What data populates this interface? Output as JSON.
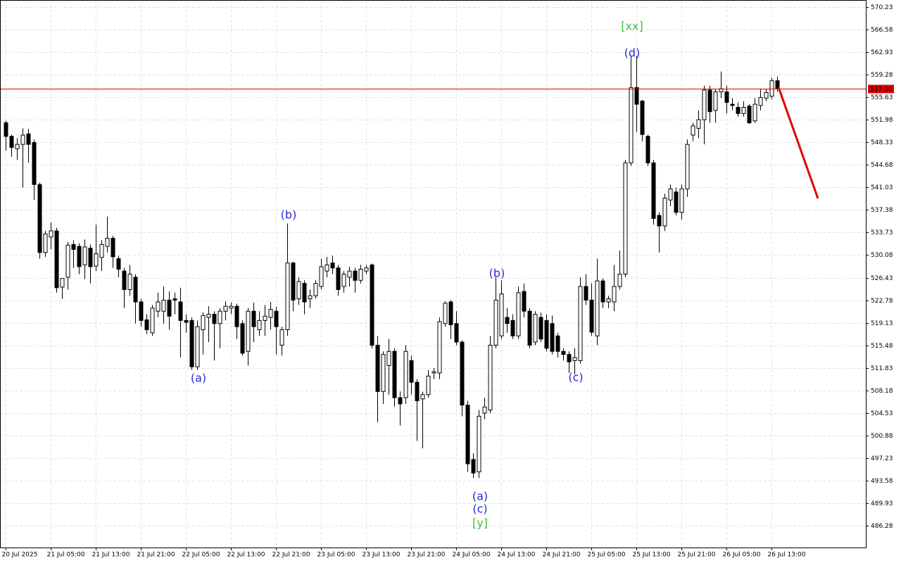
{
  "chart_data": {
    "type": "candlestick",
    "up_color": "#ffffff",
    "down_color": "#000000",
    "wick_color": "#000000",
    "grid": true,
    "ylim": [
      482.75,
      571.37
    ],
    "yticks": [
      570.23,
      566.58,
      562.93,
      559.28,
      555.63,
      551.98,
      548.33,
      544.68,
      541.03,
      537.38,
      533.73,
      530.08,
      526.43,
      522.78,
      519.13,
      515.48,
      511.83,
      508.18,
      504.53,
      500.88,
      497.23,
      493.58,
      489.93,
      486.28
    ],
    "xticks": [
      {
        "value": 0,
        "label": "20 Jul 2025"
      },
      {
        "value": 8,
        "label": "21 Jul 05:00"
      },
      {
        "value": 16,
        "label": "21 Jul 13:00"
      },
      {
        "value": 24,
        "label": "21 Jul 21:00"
      },
      {
        "value": 32,
        "label": "22 Jul 05:00"
      },
      {
        "value": 40,
        "label": "22 Jul 13:00"
      },
      {
        "value": 48,
        "label": "22 Jul 21:00"
      },
      {
        "value": 56,
        "label": "23 Jul 05:00"
      },
      {
        "value": 64,
        "label": "23 Jul 13:00"
      },
      {
        "value": 72,
        "label": "23 Jul 21:00"
      },
      {
        "value": 80,
        "label": "24 Jul 05:00"
      },
      {
        "value": 88,
        "label": "24 Jul 13:00"
      },
      {
        "value": 96,
        "label": "24 Jul 21:00"
      },
      {
        "value": 104,
        "label": "25 Jul 05:00"
      },
      {
        "value": 112,
        "label": "25 Jul 13:00"
      },
      {
        "value": 120,
        "label": "25 Jul 21:00"
      },
      {
        "value": 128,
        "label": "26 Jul 05:00"
      },
      {
        "value": 136,
        "label": "26 Jul 13:00"
      }
    ],
    "price_line": {
      "value": 557,
      "label": "557.00",
      "color": "#e00000"
    },
    "forecast_color": "#e00000",
    "annotations": [
      {
        "text": "(a)",
        "color": "#2a2ad8"
      },
      {
        "text": "(b)",
        "color": "#2a2ad8"
      },
      {
        "text": "(a)",
        "color": "#2a2ad8"
      },
      {
        "text": "(c)",
        "color": "#2a2ad8"
      },
      {
        "text": "[y]",
        "color": "#3cc43c"
      },
      {
        "text": "(b)",
        "color": "#2a2ad8"
      },
      {
        "text": "(c)",
        "color": "#2a2ad8"
      },
      {
        "text": "(d)",
        "color": "#2a2ad8"
      },
      {
        "text": "[xx]",
        "color": "#3cc43c"
      }
    ],
    "candles": [
      {
        "open": 551.5,
        "high": 551.8,
        "low": 547,
        "close": 549.3
      },
      {
        "open": 549.3,
        "high": 549.6,
        "low": 546,
        "close": 547.5
      },
      {
        "open": 547.3,
        "high": 549,
        "low": 545.5,
        "close": 548
      },
      {
        "open": 548,
        "high": 550.6,
        "low": 541,
        "close": 549.5
      },
      {
        "open": 549.7,
        "high": 550.5,
        "low": 545,
        "close": 548
      },
      {
        "open": 548.3,
        "high": 548.8,
        "low": 539,
        "close": 541.5
      },
      {
        "open": 541.5,
        "high": 541.8,
        "low": 529.5,
        "close": 530.5
      },
      {
        "open": 530.5,
        "high": 534,
        "low": 529.8,
        "close": 533.5
      },
      {
        "open": 533,
        "high": 535.4,
        "low": 531,
        "close": 534
      },
      {
        "open": 534,
        "high": 534.5,
        "low": 524,
        "close": 524.8
      },
      {
        "open": 524.9,
        "high": 526.3,
        "low": 523,
        "close": 526.3
      },
      {
        "open": 526.5,
        "high": 532.2,
        "low": 524.5,
        "close": 531.7
      },
      {
        "open": 531.8,
        "high": 532.5,
        "low": 528,
        "close": 531
      },
      {
        "open": 531.5,
        "high": 532,
        "low": 527,
        "close": 528.2
      },
      {
        "open": 528.5,
        "high": 532.6,
        "low": 526.2,
        "close": 531.4
      },
      {
        "open": 531.2,
        "high": 531.8,
        "low": 525.5,
        "close": 528.2
      },
      {
        "open": 528.3,
        "high": 535,
        "low": 527.5,
        "close": 530.3
      },
      {
        "open": 529.7,
        "high": 532.5,
        "low": 527.5,
        "close": 531.8
      },
      {
        "open": 531.5,
        "high": 536.3,
        "low": 530.5,
        "close": 532.8
      },
      {
        "open": 532.8,
        "high": 533.2,
        "low": 528,
        "close": 529.8
      },
      {
        "open": 529.5,
        "high": 530,
        "low": 526.5,
        "close": 527.8
      },
      {
        "open": 527.5,
        "high": 528,
        "low": 521.5,
        "close": 524.5
      },
      {
        "open": 524.5,
        "high": 528.5,
        "low": 523.5,
        "close": 527
      },
      {
        "open": 526.5,
        "high": 527,
        "low": 519,
        "close": 522.5
      },
      {
        "open": 522.5,
        "high": 523,
        "low": 518.5,
        "close": 519.5
      },
      {
        "open": 519.6,
        "high": 520.5,
        "low": 517.3,
        "close": 518
      },
      {
        "open": 517.5,
        "high": 522,
        "low": 517,
        "close": 521.5
      },
      {
        "open": 521,
        "high": 524,
        "low": 520,
        "close": 522.5
      },
      {
        "open": 521,
        "high": 525,
        "low": 519,
        "close": 522.8
      },
      {
        "open": 522.8,
        "high": 524.2,
        "low": 518,
        "close": 520.2
      },
      {
        "open": 523,
        "high": 524,
        "low": 520.5,
        "close": 522.8
      },
      {
        "open": 522.5,
        "high": 524.8,
        "low": 513.5,
        "close": 519.5
      },
      {
        "open": 519.5,
        "high": 520.5,
        "low": 517.5,
        "close": 519.2
      },
      {
        "open": 519.5,
        "high": 520,
        "low": 511.5,
        "close": 512
      },
      {
        "open": 512,
        "high": 519.5,
        "low": 511.5,
        "close": 518.5
      },
      {
        "open": 518,
        "high": 520.8,
        "low": 514,
        "close": 520.3
      },
      {
        "open": 520,
        "high": 521.8,
        "low": 516,
        "close": 520.5
      },
      {
        "open": 520.5,
        "high": 521,
        "low": 513,
        "close": 519
      },
      {
        "open": 519,
        "high": 521.5,
        "low": 515,
        "close": 521
      },
      {
        "open": 521,
        "high": 522.6,
        "low": 519.5,
        "close": 521.8
      },
      {
        "open": 521.5,
        "high": 522.4,
        "low": 520.5,
        "close": 521.8
      },
      {
        "open": 521.8,
        "high": 522.2,
        "low": 516.5,
        "close": 518.5
      },
      {
        "open": 519,
        "high": 519.5,
        "low": 513.8,
        "close": 514.2
      },
      {
        "open": 514.5,
        "high": 521.5,
        "low": 512.2,
        "close": 521
      },
      {
        "open": 521,
        "high": 522.4,
        "low": 516,
        "close": 518.5
      },
      {
        "open": 518,
        "high": 521,
        "low": 517,
        "close": 519.5
      },
      {
        "open": 519.5,
        "high": 522,
        "low": 517,
        "close": 520.2
      },
      {
        "open": 520,
        "high": 522.5,
        "low": 518,
        "close": 521.3
      },
      {
        "open": 521,
        "high": 521.7,
        "low": 514,
        "close": 518.5
      },
      {
        "open": 515.5,
        "high": 518.5,
        "low": 513.8,
        "close": 518
      },
      {
        "open": 518,
        "high": 535.2,
        "low": 517,
        "close": 528.8
      },
      {
        "open": 528.8,
        "high": 529,
        "low": 521,
        "close": 522.8
      },
      {
        "open": 523,
        "high": 526.5,
        "low": 522,
        "close": 525.8
      },
      {
        "open": 525.5,
        "high": 526,
        "low": 520.5,
        "close": 522.5
      },
      {
        "open": 523,
        "high": 524.5,
        "low": 521.5,
        "close": 523.5
      },
      {
        "open": 523.5,
        "high": 526,
        "low": 523,
        "close": 525.5
      },
      {
        "open": 525,
        "high": 529.5,
        "low": 524.5,
        "close": 528.2
      },
      {
        "open": 527.5,
        "high": 529.8,
        "low": 526.5,
        "close": 528.5
      },
      {
        "open": 528.8,
        "high": 530,
        "low": 527,
        "close": 528
      },
      {
        "open": 528,
        "high": 528.5,
        "low": 523.5,
        "close": 524.5
      },
      {
        "open": 525,
        "high": 527.5,
        "low": 524,
        "close": 527
      },
      {
        "open": 526.5,
        "high": 528.2,
        "low": 525,
        "close": 527.5
      },
      {
        "open": 527.5,
        "high": 528,
        "low": 524,
        "close": 526
      },
      {
        "open": 526,
        "high": 528.5,
        "low": 525.5,
        "close": 527.8
      },
      {
        "open": 527.5,
        "high": 528.5,
        "low": 527,
        "close": 528
      },
      {
        "open": 528.5,
        "high": 528.7,
        "low": 515,
        "close": 515.5
      },
      {
        "open": 515.5,
        "high": 517,
        "low": 503,
        "close": 508
      },
      {
        "open": 508,
        "high": 514.5,
        "low": 506,
        "close": 514
      },
      {
        "open": 512.2,
        "high": 516.5,
        "low": 507.5,
        "close": 514.5
      },
      {
        "open": 514.5,
        "high": 515,
        "low": 505.5,
        "close": 507
      },
      {
        "open": 507,
        "high": 508,
        "low": 502.5,
        "close": 506
      },
      {
        "open": 507,
        "high": 515.5,
        "low": 506,
        "close": 514.5
      },
      {
        "open": 513,
        "high": 513.8,
        "low": 507.5,
        "close": 509.5
      },
      {
        "open": 509.5,
        "high": 510,
        "low": 500,
        "close": 506.5
      },
      {
        "open": 506.8,
        "high": 508,
        "low": 498.8,
        "close": 507.5
      },
      {
        "open": 507.5,
        "high": 511.5,
        "low": 507,
        "close": 510.5
      },
      {
        "open": 511,
        "high": 511.8,
        "low": 510,
        "close": 511.2
      },
      {
        "open": 511,
        "high": 520,
        "low": 510,
        "close": 519.3
      },
      {
        "open": 519,
        "high": 522.6,
        "low": 518.5,
        "close": 522.3
      },
      {
        "open": 522.5,
        "high": 522.8,
        "low": 516.5,
        "close": 518.8
      },
      {
        "open": 519,
        "high": 521,
        "low": 515.5,
        "close": 516
      },
      {
        "open": 516,
        "high": 516.3,
        "low": 504,
        "close": 505.8
      },
      {
        "open": 505.8,
        "high": 506.5,
        "low": 495,
        "close": 496.3
      },
      {
        "open": 497,
        "high": 498,
        "low": 494,
        "close": 494.8
      },
      {
        "open": 495,
        "high": 505,
        "low": 494,
        "close": 504
      },
      {
        "open": 504.5,
        "high": 507,
        "low": 503.5,
        "close": 505.5
      },
      {
        "open": 505,
        "high": 517,
        "low": 504.5,
        "close": 515.5
      },
      {
        "open": 515.5,
        "high": 526.5,
        "low": 515,
        "close": 522.8
      },
      {
        "open": 517,
        "high": 526,
        "low": 516.5,
        "close": 523.8
      },
      {
        "open": 520,
        "high": 521.5,
        "low": 517.5,
        "close": 519
      },
      {
        "open": 519.5,
        "high": 520.5,
        "low": 516.5,
        "close": 517
      },
      {
        "open": 517,
        "high": 525,
        "low": 516.5,
        "close": 524
      },
      {
        "open": 524.2,
        "high": 525.5,
        "low": 520,
        "close": 521
      },
      {
        "open": 521,
        "high": 521.5,
        "low": 515,
        "close": 515.5
      },
      {
        "open": 516,
        "high": 521,
        "low": 515.5,
        "close": 520.5
      },
      {
        "open": 520,
        "high": 520.8,
        "low": 516,
        "close": 516.5
      },
      {
        "open": 519.5,
        "high": 520.5,
        "low": 514.5,
        "close": 515
      },
      {
        "open": 519,
        "high": 520.3,
        "low": 514,
        "close": 514.5
      },
      {
        "open": 517,
        "high": 517.5,
        "low": 513.5,
        "close": 514.5
      },
      {
        "open": 514.5,
        "high": 515,
        "low": 513,
        "close": 514
      },
      {
        "open": 514,
        "high": 514.5,
        "low": 511,
        "close": 512.8
      },
      {
        "open": 513,
        "high": 515,
        "low": 510.8,
        "close": 513.5
      },
      {
        "open": 513,
        "high": 526.5,
        "low": 512.5,
        "close": 525
      },
      {
        "open": 525,
        "high": 527,
        "low": 522,
        "close": 522.8
      },
      {
        "open": 522.8,
        "high": 525.5,
        "low": 517,
        "close": 517.6
      },
      {
        "open": 517,
        "high": 529.5,
        "low": 515.5,
        "close": 525.9
      },
      {
        "open": 525.9,
        "high": 526.3,
        "low": 521.5,
        "close": 522.5
      },
      {
        "open": 522.5,
        "high": 523.5,
        "low": 521.5,
        "close": 523
      },
      {
        "open": 522.5,
        "high": 528.5,
        "low": 521,
        "close": 525
      },
      {
        "open": 525,
        "high": 530.8,
        "low": 524.5,
        "close": 527
      },
      {
        "open": 527,
        "high": 545.5,
        "low": 526.5,
        "close": 545
      },
      {
        "open": 545,
        "high": 562.3,
        "low": 544.5,
        "close": 557.2
      },
      {
        "open": 557.2,
        "high": 562.3,
        "low": 550,
        "close": 554.5
      },
      {
        "open": 555,
        "high": 555.2,
        "low": 548.5,
        "close": 549.6
      },
      {
        "open": 549.3,
        "high": 549.6,
        "low": 544.5,
        "close": 545
      },
      {
        "open": 545,
        "high": 545.5,
        "low": 535,
        "close": 536
      },
      {
        "open": 536.5,
        "high": 537,
        "low": 530.5,
        "close": 534.8
      },
      {
        "open": 534.8,
        "high": 540,
        "low": 534,
        "close": 539.3
      },
      {
        "open": 539,
        "high": 541.5,
        "low": 538,
        "close": 540.8
      },
      {
        "open": 540.3,
        "high": 541,
        "low": 536.5,
        "close": 537
      },
      {
        "open": 537,
        "high": 541.5,
        "low": 535.8,
        "close": 540.8
      },
      {
        "open": 540.8,
        "high": 548.8,
        "low": 539.5,
        "close": 548
      },
      {
        "open": 549.5,
        "high": 551.5,
        "low": 548.5,
        "close": 551
      },
      {
        "open": 550.6,
        "high": 553.5,
        "low": 549,
        "close": 552
      },
      {
        "open": 552,
        "high": 557.5,
        "low": 548,
        "close": 556.8
      },
      {
        "open": 556.8,
        "high": 557.5,
        "low": 551.5,
        "close": 553.3
      },
      {
        "open": 553.5,
        "high": 557,
        "low": 551.5,
        "close": 556.5
      },
      {
        "open": 556.5,
        "high": 559.8,
        "low": 555.5,
        "close": 557
      },
      {
        "open": 556.5,
        "high": 557.5,
        "low": 553,
        "close": 554.8
      },
      {
        "open": 554.5,
        "high": 555.5,
        "low": 553.5,
        "close": 554.3
      },
      {
        "open": 554,
        "high": 554.8,
        "low": 552.5,
        "close": 553
      },
      {
        "open": 553,
        "high": 555,
        "low": 552.5,
        "close": 554
      },
      {
        "open": 554.2,
        "high": 554.5,
        "low": 551.3,
        "close": 551.5
      },
      {
        "open": 551.8,
        "high": 555.5,
        "low": 551.5,
        "close": 554.5
      },
      {
        "open": 554.3,
        "high": 557,
        "low": 553.5,
        "close": 555.6
      },
      {
        "open": 555.5,
        "high": 557,
        "low": 555,
        "close": 556.4
      },
      {
        "open": 555.8,
        "high": 558.8,
        "low": 555.3,
        "close": 558.3
      },
      {
        "open": 558.3,
        "high": 559,
        "low": 556.5,
        "close": 557
      }
    ]
  }
}
